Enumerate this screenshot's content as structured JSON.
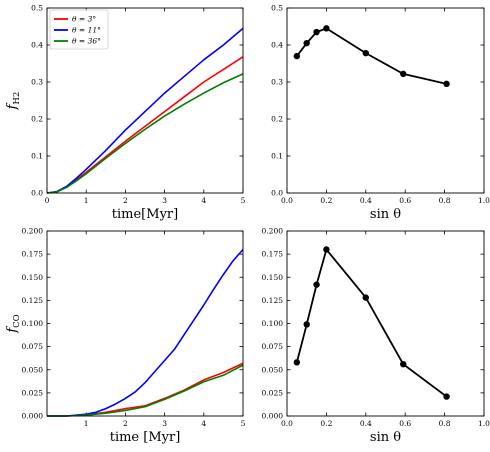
{
  "chart_data": [
    {
      "type": "line",
      "panel": "top-left",
      "xlabel": "time[Myr]",
      "ylabel": "f_H2",
      "xlim": [
        0,
        5
      ],
      "ylim": [
        0,
        0.5
      ],
      "xticks": [
        0,
        1,
        2,
        3,
        4,
        5
      ],
      "yticks": [
        0.0,
        0.1,
        0.2,
        0.3,
        0.4,
        0.5
      ],
      "xtick_labels": [
        "0",
        "1",
        "2",
        "3",
        "4",
        "5"
      ],
      "ytick_labels": [
        "0.0",
        "0.1",
        "0.2",
        "0.3",
        "0.4",
        "0.5"
      ],
      "legend_position": "top-left",
      "series": [
        {
          "name": "θ = 3°",
          "color": "#ff0000",
          "x": [
            0,
            0.25,
            0.5,
            0.75,
            1,
            1.5,
            2,
            2.5,
            3,
            3.5,
            4,
            4.5,
            5
          ],
          "y": [
            0,
            0.003,
            0.016,
            0.036,
            0.056,
            0.098,
            0.14,
            0.18,
            0.22,
            0.26,
            0.3,
            0.334,
            0.368
          ]
        },
        {
          "name": "θ = 11°",
          "color": "#0000ff",
          "x": [
            0,
            0.25,
            0.5,
            0.75,
            1,
            1.5,
            2,
            2.5,
            3,
            3.5,
            4,
            4.5,
            5
          ],
          "y": [
            0,
            0.004,
            0.018,
            0.04,
            0.064,
            0.115,
            0.17,
            0.22,
            0.27,
            0.315,
            0.36,
            0.4,
            0.445
          ]
        },
        {
          "name": "θ = 36°",
          "color": "#008000",
          "x": [
            0,
            0.25,
            0.5,
            0.75,
            1,
            1.5,
            2,
            2.5,
            3,
            3.5,
            4,
            4.5,
            5
          ],
          "y": [
            0,
            0.003,
            0.015,
            0.033,
            0.052,
            0.094,
            0.134,
            0.172,
            0.208,
            0.24,
            0.27,
            0.298,
            0.322
          ]
        }
      ]
    },
    {
      "type": "line",
      "panel": "top-right",
      "xlabel": "sin θ",
      "ylabel": "",
      "xlim": [
        0,
        1
      ],
      "ylim": [
        0,
        0.5
      ],
      "xticks": [
        0,
        0.2,
        0.4,
        0.6,
        0.8,
        1.0
      ],
      "yticks": [
        0.0,
        0.1,
        0.2,
        0.3,
        0.4,
        0.5
      ],
      "xtick_labels": [
        "0.0",
        "0.2",
        "0.4",
        "0.6",
        "0.8",
        "1.0"
      ],
      "ytick_labels": [
        "0.0",
        "0.1",
        "0.2",
        "0.3",
        "0.4",
        "0.5"
      ],
      "series": [
        {
          "color": "#000000",
          "marker": "circle",
          "x": [
            0.05,
            0.1,
            0.15,
            0.2,
            0.4,
            0.59,
            0.81
          ],
          "y": [
            0.37,
            0.405,
            0.435,
            0.445,
            0.378,
            0.322,
            0.295
          ]
        }
      ]
    },
    {
      "type": "line",
      "panel": "bottom-left",
      "xlabel": "time [Myr]",
      "ylabel": "f_CO",
      "xlim": [
        0,
        5
      ],
      "ylim": [
        0,
        0.2
      ],
      "xticks": [
        1,
        2,
        3,
        4,
        5
      ],
      "yticks": [
        0.0,
        0.025,
        0.05,
        0.075,
        0.1,
        0.125,
        0.15,
        0.175,
        0.2
      ],
      "xtick_labels": [
        "1",
        "2",
        "3",
        "4",
        "5"
      ],
      "ytick_labels": [
        "0.000",
        "0.025",
        "0.050",
        "0.075",
        "0.100",
        "0.125",
        "0.150",
        "0.175",
        "0.200"
      ],
      "series": [
        {
          "name": "θ = 3°",
          "color": "#ff0000",
          "x": [
            0,
            0.5,
            1,
            1.5,
            2,
            2.5,
            3,
            3.5,
            4,
            4.5,
            5
          ],
          "y": [
            0,
            0,
            0.001,
            0.004,
            0.008,
            0.011,
            0.019,
            0.028,
            0.039,
            0.047,
            0.057
          ]
        },
        {
          "name": "θ = 11°",
          "color": "#0000ff",
          "x": [
            0,
            0.5,
            1,
            1.25,
            1.5,
            1.75,
            2,
            2.25,
            2.5,
            2.75,
            3,
            3.25,
            3.5,
            3.75,
            4,
            4.25,
            4.5,
            4.75,
            5
          ],
          "y": [
            0,
            0,
            0.002,
            0.004,
            0.008,
            0.013,
            0.019,
            0.026,
            0.036,
            0.048,
            0.06,
            0.072,
            0.088,
            0.104,
            0.12,
            0.137,
            0.153,
            0.168,
            0.18
          ]
        },
        {
          "name": "θ = 36°",
          "color": "#008000",
          "x": [
            0,
            0.5,
            1,
            1.5,
            2,
            2.5,
            3,
            3.5,
            4,
            4.5,
            5
          ],
          "y": [
            0,
            0,
            0.001,
            0.003,
            0.006,
            0.01,
            0.018,
            0.027,
            0.037,
            0.044,
            0.055
          ]
        }
      ]
    },
    {
      "type": "line",
      "panel": "bottom-right",
      "xlabel": "sin θ",
      "ylabel": "",
      "xlim": [
        0,
        1
      ],
      "ylim": [
        0,
        0.2
      ],
      "xticks": [
        0,
        0.2,
        0.4,
        0.6,
        0.8,
        1.0
      ],
      "yticks": [
        0.0,
        0.025,
        0.05,
        0.075,
        0.1,
        0.125,
        0.15,
        0.175,
        0.2
      ],
      "xtick_labels": [
        "0.0",
        "0.2",
        "0.4",
        "0.6",
        "0.8",
        "1.0"
      ],
      "ytick_labels": [
        "0.000",
        "0.025",
        "0.050",
        "0.075",
        "0.100",
        "0.125",
        "0.150",
        "0.175",
        "0.200"
      ],
      "series": [
        {
          "color": "#000000",
          "marker": "circle",
          "x": [
            0.05,
            0.1,
            0.15,
            0.2,
            0.4,
            0.59,
            0.81
          ],
          "y": [
            0.058,
            0.099,
            0.142,
            0.18,
            0.128,
            0.056,
            0.021
          ]
        }
      ]
    }
  ]
}
